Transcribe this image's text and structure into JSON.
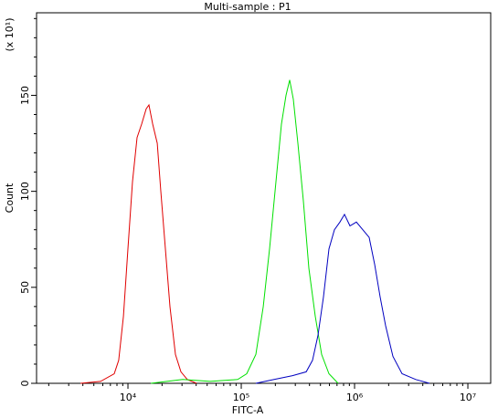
{
  "chart_data": {
    "type": "histogram-line",
    "title": "Multi-sample : P1",
    "xlabel": "FITC-A",
    "ylabel": "Count",
    "ymultiplier": "(x 10¹)",
    "xscale": "log",
    "xlim": [
      1561,
      15900000
    ],
    "ylim": [
      0,
      193
    ],
    "xticks": [
      {
        "value": 10000,
        "label": "10⁴"
      },
      {
        "value": 100000,
        "label": "10⁵"
      },
      {
        "value": 1000000,
        "label": "10⁶"
      },
      {
        "value": 10000000,
        "label": "10⁷"
      }
    ],
    "xminorticks": [
      2000,
      3000,
      4000,
      5000,
      6000,
      7000,
      8000,
      9000,
      20000,
      30000,
      40000,
      50000,
      60000,
      70000,
      80000,
      90000,
      200000,
      300000,
      400000,
      500000,
      600000,
      700000,
      800000,
      900000,
      2000000,
      3000000,
      4000000,
      5000000,
      6000000,
      7000000,
      8000000,
      9000000
    ],
    "yticks": [
      0,
      50,
      100,
      150
    ],
    "yminorticks": [
      10,
      20,
      30,
      40,
      60,
      70,
      80,
      90,
      110,
      120,
      130,
      140,
      160,
      170,
      180,
      190
    ],
    "series": [
      {
        "color": "#e00000",
        "x": [
          3810,
          5730,
          7570,
          8290,
          9120,
          10000,
          10970,
          12040,
          13210,
          14490,
          15310,
          16520,
          18130,
          19500,
          21410,
          23490,
          26240,
          29370,
          33420,
          40290
        ],
        "values": [
          0,
          1,
          5,
          12,
          35,
          70,
          105,
          128,
          135,
          143,
          145,
          135,
          125,
          100,
          70,
          40,
          15,
          6,
          2,
          0
        ]
      },
      {
        "color": "#00e000",
        "x": [
          15920,
          30480,
          53210,
          92950,
          111700,
          134500,
          156300,
          177800,
          202500,
          226300,
          248300,
          267300,
          288200,
          316200,
          353400,
          395300,
          449800,
          512300,
          594300,
          715800
        ],
        "values": [
          0,
          2,
          1,
          2,
          5,
          15,
          40,
          70,
          105,
          135,
          150,
          158,
          148,
          125,
          95,
          60,
          35,
          15,
          5,
          0
        ]
      },
      {
        "color": "#0000c0",
        "x": [
          134500,
          195000,
          283100,
          374200,
          425800,
          475400,
          531700,
          594300,
          664800,
          743000,
          815200,
          911200,
          1037000,
          1182000,
          1345000,
          1504000,
          1682000,
          1880000,
          2182000,
          2625000,
          3467000,
          4581000
        ],
        "values": [
          0,
          2,
          4,
          6,
          12,
          25,
          45,
          70,
          80,
          84,
          88,
          82,
          84,
          80,
          76,
          62,
          45,
          30,
          14,
          5,
          2,
          0
        ]
      }
    ]
  }
}
